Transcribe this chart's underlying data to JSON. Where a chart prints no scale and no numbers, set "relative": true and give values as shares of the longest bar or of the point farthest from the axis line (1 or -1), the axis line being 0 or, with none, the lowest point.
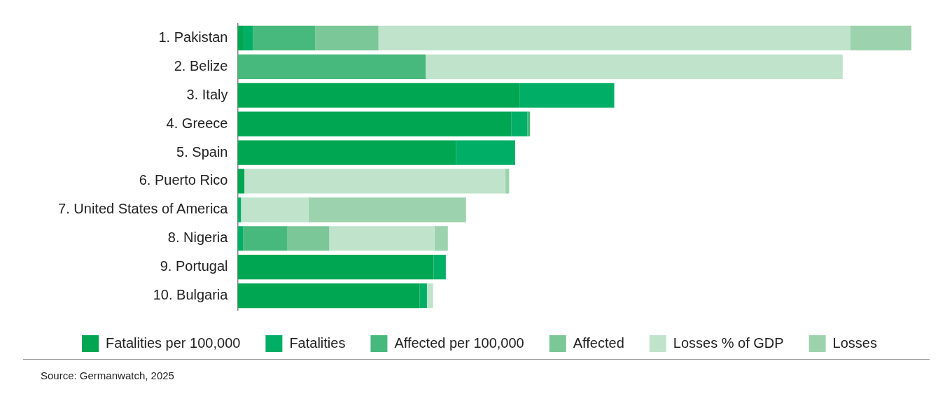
{
  "chart_data": {
    "type": "bar",
    "orientation": "horizontal",
    "stacked": true,
    "relative": true,
    "grid": false,
    "legend": "bottom",
    "categories": [
      "1. Pakistan",
      "2. Belize",
      "3. Italy",
      "4. Greece",
      "5. Spain",
      "6. Puerto Rico",
      "7. United States of America",
      "8. Nigeria",
      "9. Portugal",
      "10. Bulgaria"
    ],
    "series": [
      {
        "name": "Fatalities per 100,000",
        "color": "#00a651",
        "values": [
          0.009,
          0,
          0.419,
          0.406,
          0.324,
          0.01,
          0,
          0,
          0.291,
          0.27
        ]
      },
      {
        "name": "Fatalities",
        "color": "#00ae66",
        "values": [
          0.014,
          0,
          0.14,
          0.024,
          0.088,
          0,
          0.005,
          0.008,
          0.018,
          0.011
        ]
      },
      {
        "name": "Affected per 100,000",
        "color": "#48b97c",
        "values": [
          0.092,
          0.279,
          0,
          0.004,
          0,
          0,
          0,
          0.066,
          0,
          0
        ]
      },
      {
        "name": "Affected",
        "color": "#7bc797",
        "values": [
          0.094,
          0,
          0,
          0,
          0,
          0,
          0,
          0.062,
          0,
          0
        ]
      },
      {
        "name": "Losses % of GDP",
        "color": "#c0e3cb",
        "values": [
          0.7,
          0.619,
          0,
          0,
          0,
          0.387,
          0.1,
          0.156,
          0,
          0.009
        ]
      },
      {
        "name": "Losses",
        "color": "#9cd3ae",
        "values": [
          0.091,
          0,
          0,
          0,
          0,
          0.006,
          0.234,
          0.02,
          0,
          0
        ]
      }
    ],
    "annotations": [
      "Source: Germanwatch, 2025"
    ]
  }
}
